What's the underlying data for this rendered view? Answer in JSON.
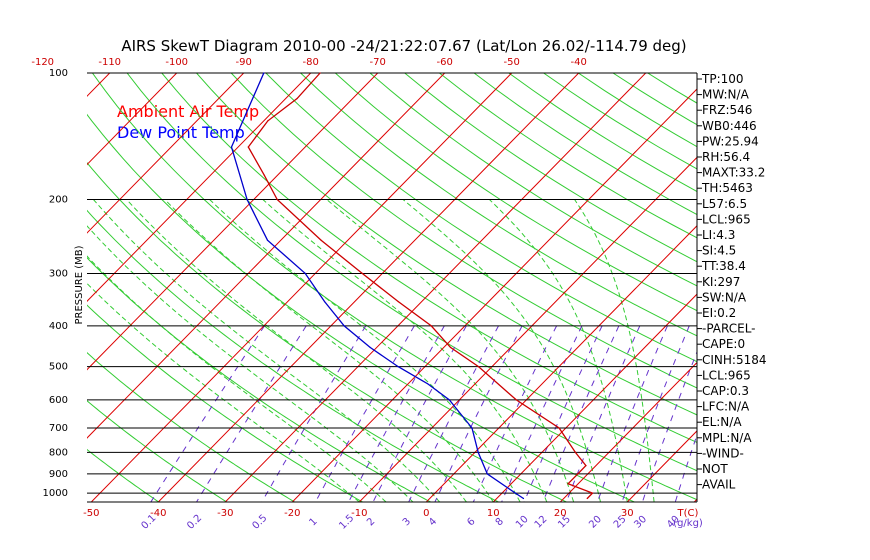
{
  "chart_data": {
    "type": "line",
    "title": "AIRS SkewT Diagram 2010-00 -24/21:22:07.67 (Lat/Lon 26.02/-114.79 deg)",
    "ylabel": "PRESSURE (MB)",
    "y_scale": "log",
    "ylim": [
      1050,
      100
    ],
    "yticks": [
      100,
      200,
      300,
      400,
      500,
      600,
      700,
      800,
      900,
      1000
    ],
    "xlim": [
      -52,
      40
    ],
    "top_ticks": [
      "-120",
      "-110",
      "-100",
      "-90",
      "-80",
      "-70",
      "-60",
      "-50",
      "-40"
    ],
    "bottom_ticks": [
      "-50",
      "-40",
      "-30",
      "-20",
      "-10",
      "0",
      "10",
      "20",
      "30"
    ],
    "bottom_unit": "T(C)",
    "mixing_ratio_labels": [
      "0.1",
      "0.2",
      "0.5",
      "1",
      "1.5",
      "2",
      "3",
      "4",
      "6",
      "8",
      "10",
      "12",
      "15",
      "20",
      "25",
      "30",
      "40"
    ],
    "mixing_ratio_unit": "g/kg",
    "legend": [
      {
        "name": "Ambient Air Temp",
        "color": "#ff0000"
      },
      {
        "name": "Dew Point Temp",
        "color": "#0000ff"
      }
    ],
    "legend_position": "top-left",
    "grid": true,
    "series": [
      {
        "name": "Ambient Air Temp",
        "color": "#cc0000",
        "points": [
          {
            "p": 100,
            "t": -78.6
          },
          {
            "p": 115,
            "t": -78.3
          },
          {
            "p": 130,
            "t": -79.4
          },
          {
            "p": 150,
            "t": -78.5
          },
          {
            "p": 175,
            "t": -72.0
          },
          {
            "p": 200,
            "t": -66.5
          },
          {
            "p": 250,
            "t": -54.0
          },
          {
            "p": 300,
            "t": -43.0
          },
          {
            "p": 350,
            "t": -33.5
          },
          {
            "p": 400,
            "t": -25.0
          },
          {
            "p": 450,
            "t": -19.0
          },
          {
            "p": 500,
            "t": -12.0
          },
          {
            "p": 600,
            "t": -1.5
          },
          {
            "p": 700,
            "t": 9.0
          },
          {
            "p": 800,
            "t": 15.0
          },
          {
            "p": 860,
            "t": 18.5
          },
          {
            "p": 900,
            "t": 18.5
          },
          {
            "p": 950,
            "t": 18.5
          },
          {
            "p": 1000,
            "t": 23.5
          },
          {
            "p": 1030,
            "t": 23.5
          }
        ]
      },
      {
        "name": "Dew Point Temp",
        "color": "#0000cc",
        "points": [
          {
            "p": 100,
            "t": -87.0
          },
          {
            "p": 150,
            "t": -81.0
          },
          {
            "p": 200,
            "t": -71.0
          },
          {
            "p": 250,
            "t": -62.0
          },
          {
            "p": 300,
            "t": -51.5
          },
          {
            "p": 350,
            "t": -44.5
          },
          {
            "p": 400,
            "t": -38.0
          },
          {
            "p": 450,
            "t": -31.0
          },
          {
            "p": 500,
            "t": -24.0
          },
          {
            "p": 550,
            "t": -17.0
          },
          {
            "p": 600,
            "t": -11.5
          },
          {
            "p": 700,
            "t": -4.0
          },
          {
            "p": 800,
            "t": 0.5
          },
          {
            "p": 900,
            "t": 5.0
          },
          {
            "p": 1000,
            "t": 12.0
          },
          {
            "p": 1030,
            "t": 14.0
          }
        ]
      }
    ]
  },
  "side_panel": [
    "TP:100",
    "MW:N/A",
    "FRZ:546",
    "WB0:446",
    "PW:25.94",
    "RH:56.4",
    "MAXT:33.2",
    "TH:5463",
    "L57:6.5",
    "LCL:965",
    "LI:4.3",
    "SI:4.5",
    "TT:38.4",
    "KI:297",
    "SW:N/A",
    "EI:0.2",
    "-PARCEL-",
    "CAPE:0",
    "CINH:5184",
    "LCL:965",
    "CAP:0.3",
    "LFC:N/A",
    "EL:N/A",
    "MPL:N/A",
    "-WIND-",
    "NOT",
    "AVAIL"
  ]
}
